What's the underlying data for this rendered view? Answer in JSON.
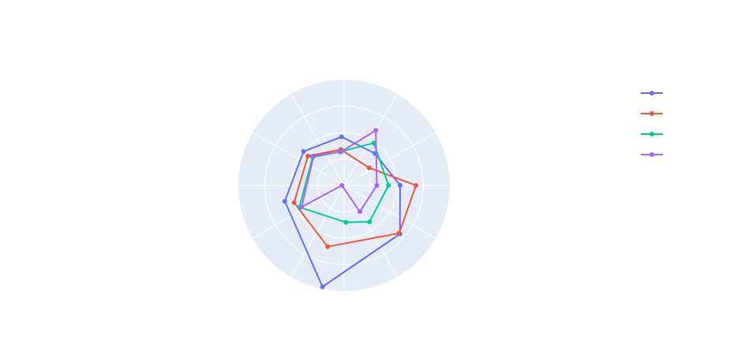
{
  "chart_data": {
    "type": "radar",
    "background_color": "#e5ecf6",
    "grid_color": "#ffffff",
    "radial_range": [
      0,
      1
    ],
    "angle_step_degrees": 30,
    "angle_rotation_degrees": 0,
    "grid": true,
    "show_radial_tick_labels": false,
    "show_angular_tick_labels": false,
    "legend_position": "top-right",
    "series": [
      {
        "color": "#636efa",
        "points": [
          {
            "r": 0.53,
            "theta": 0
          },
          {
            "r": 0.42,
            "theta": 46
          },
          {
            "r": 0.46,
            "theta": 93
          },
          {
            "r": 0.5,
            "theta": 140
          },
          {
            "r": 0.58,
            "theta": 195
          },
          {
            "r": 0.98,
            "theta": 258
          },
          {
            "r": 0.7,
            "theta": 319
          },
          {
            "r": 0.53,
            "theta": 0
          }
        ]
      },
      {
        "color": "#ef553b",
        "points": [
          {
            "r": 0.68,
            "theta": 0
          },
          {
            "r": 0.29,
            "theta": 35
          },
          {
            "r": 0.34,
            "theta": 95
          },
          {
            "r": 0.44,
            "theta": 141
          },
          {
            "r": 0.5,
            "theta": 199
          },
          {
            "r": 0.6,
            "theta": 255
          },
          {
            "r": 0.69,
            "theta": 319
          },
          {
            "r": 0.68,
            "theta": 0
          }
        ]
      },
      {
        "color": "#00cc96",
        "points": [
          {
            "r": 0.42,
            "theta": 0
          },
          {
            "r": 0.49,
            "theta": 55
          },
          {
            "r": 0.32,
            "theta": 97
          },
          {
            "r": 0.4,
            "theta": 138
          },
          {
            "r": 0.47,
            "theta": 206
          },
          {
            "r": 0.35,
            "theta": 273
          },
          {
            "r": 0.42,
            "theta": 305
          },
          {
            "r": 0.42,
            "theta": 0
          }
        ]
      },
      {
        "color": "#ab63fa",
        "points": [
          {
            "r": 0.31,
            "theta": 0
          },
          {
            "r": 0.6,
            "theta": 60
          },
          {
            "r": 0.32,
            "theta": 95
          },
          {
            "r": 0.4,
            "theta": 136
          },
          {
            "r": 0.45,
            "theta": 207
          },
          {
            "r": 0.02,
            "theta": 180
          },
          {
            "r": 0.29,
            "theta": 301
          },
          {
            "r": 0.31,
            "theta": 0
          }
        ]
      }
    ]
  }
}
